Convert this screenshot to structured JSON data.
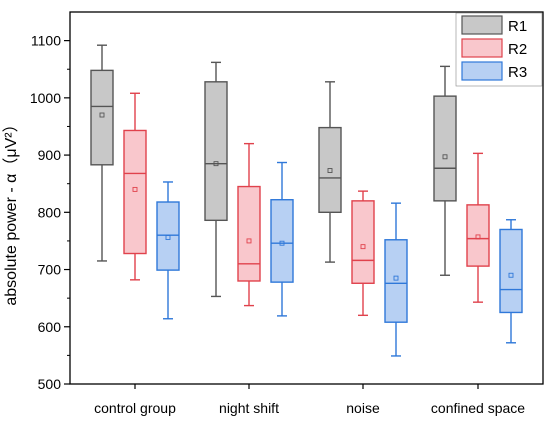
{
  "chart_data": {
    "type": "box",
    "ylabel": "absolute power - α（μV²）",
    "ylim": [
      500,
      1150
    ],
    "yticks": [
      500,
      600,
      700,
      800,
      900,
      1000,
      1100
    ],
    "categories": [
      "control group",
      "night shift",
      "noise",
      "confined space"
    ],
    "legend_position": "top-right",
    "series": [
      {
        "name": "R1",
        "fill": "#c8c8c8",
        "stroke": "#555555",
        "boxes": [
          {
            "whisker_low": 715,
            "q1": 883,
            "median": 985,
            "q3": 1048,
            "whisker_high": 1092,
            "mean": 970
          },
          {
            "whisker_low": 653,
            "q1": 786,
            "median": 885,
            "q3": 1028,
            "whisker_high": 1062,
            "mean": 885
          },
          {
            "whisker_low": 713,
            "q1": 800,
            "median": 860,
            "q3": 948,
            "whisker_high": 1028,
            "mean": 873
          },
          {
            "whisker_low": 690,
            "q1": 820,
            "median": 877,
            "q3": 1003,
            "whisker_high": 1055,
            "mean": 897
          }
        ]
      },
      {
        "name": "R2",
        "fill": "#f9c7cc",
        "stroke": "#e0424c",
        "boxes": [
          {
            "whisker_low": 682,
            "q1": 728,
            "median": 868,
            "q3": 943,
            "whisker_high": 1008,
            "mean": 840
          },
          {
            "whisker_low": 637,
            "q1": 680,
            "median": 710,
            "q3": 845,
            "whisker_high": 920,
            "mean": 750
          },
          {
            "whisker_low": 620,
            "q1": 676,
            "median": 716,
            "q3": 820,
            "whisker_high": 837,
            "mean": 740
          },
          {
            "whisker_low": 643,
            "q1": 706,
            "median": 754,
            "q3": 813,
            "whisker_high": 903,
            "mean": 757
          }
        ]
      },
      {
        "name": "R3",
        "fill": "#b7d0f3",
        "stroke": "#2f78d9",
        "boxes": [
          {
            "whisker_low": 614,
            "q1": 699,
            "median": 760,
            "q3": 818,
            "whisker_high": 853,
            "mean": 756
          },
          {
            "whisker_low": 619,
            "q1": 678,
            "median": 746,
            "q3": 822,
            "whisker_high": 887,
            "mean": 746
          },
          {
            "whisker_low": 549,
            "q1": 608,
            "median": 676,
            "q3": 752,
            "whisker_high": 816,
            "mean": 685
          },
          {
            "whisker_low": 572,
            "q1": 625,
            "median": 665,
            "q3": 770,
            "whisker_high": 787,
            "mean": 690
          }
        ]
      }
    ]
  }
}
